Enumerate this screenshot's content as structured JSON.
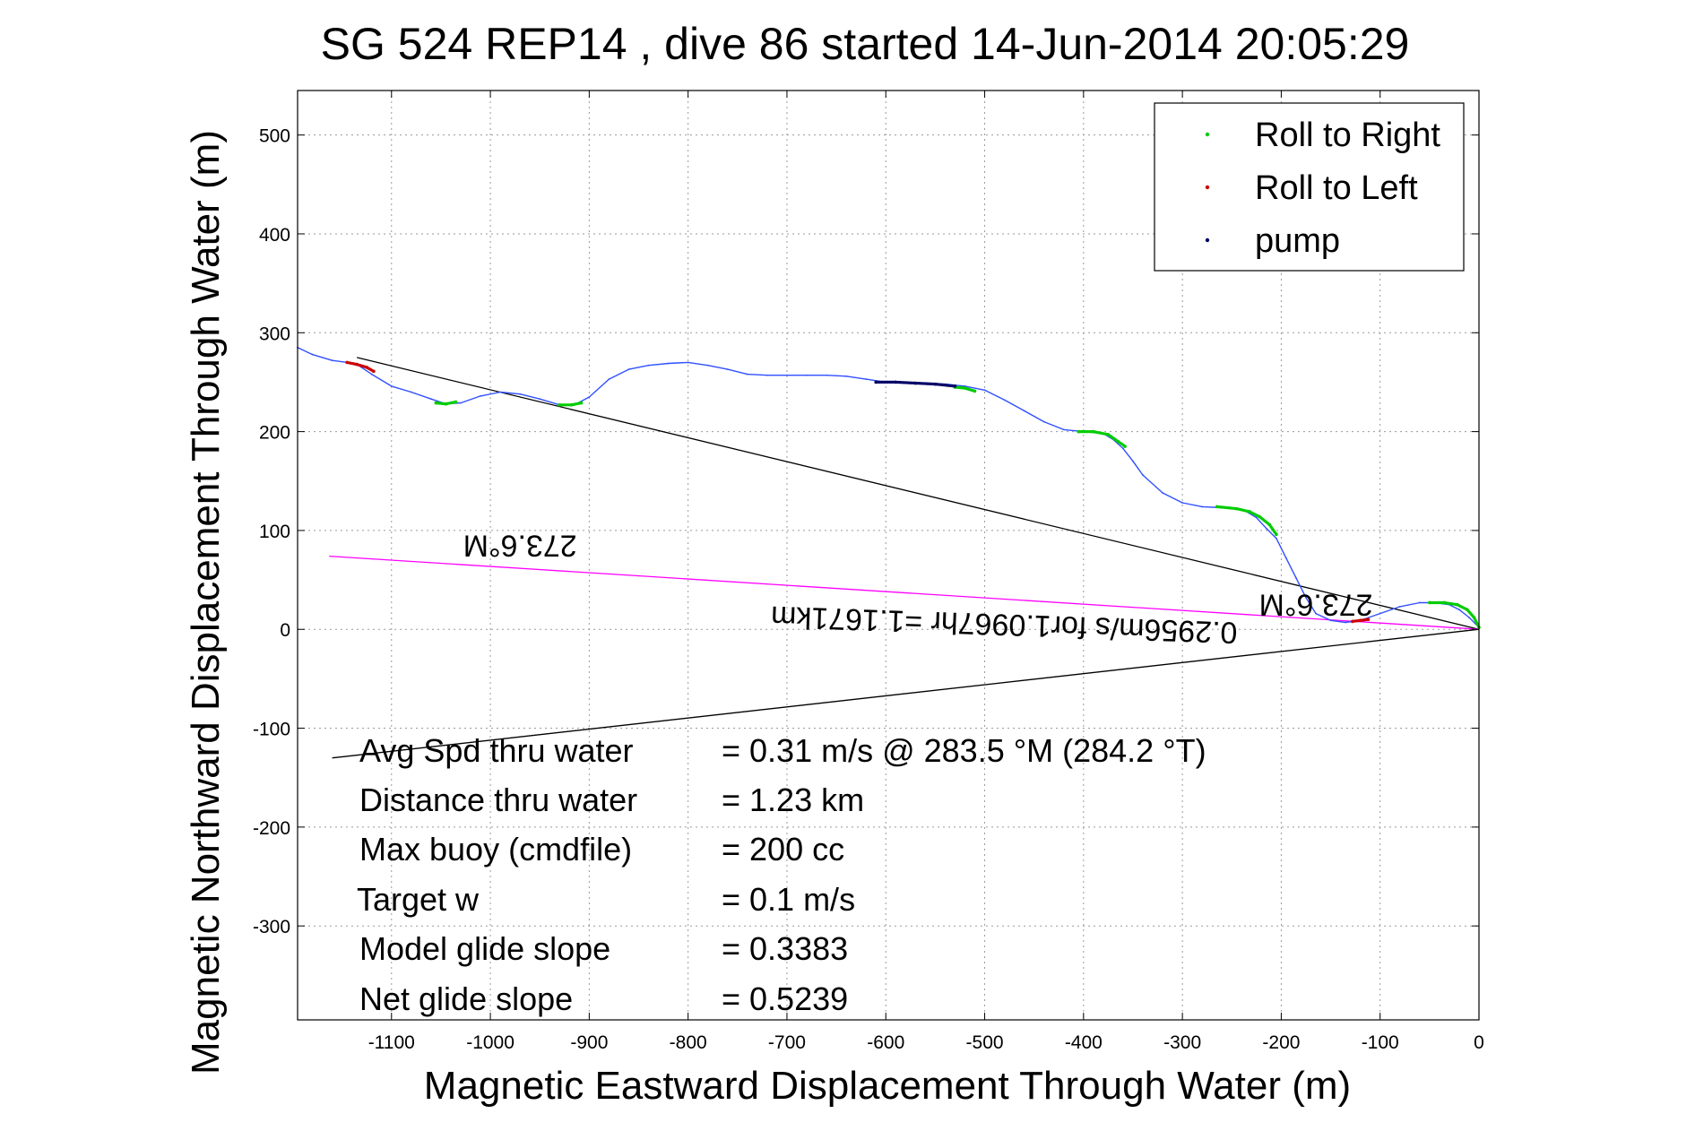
{
  "chart_data": {
    "type": "line",
    "title": "SG 524   REP14  , dive 86 started 14-Jun-2014 20:05:29",
    "xlabel": "Magnetic Eastward Displacement Through Water (m)",
    "ylabel": "Magnetic Northward Displacement Through Water (m)",
    "xlim": [
      -1195,
      0
    ],
    "ylim": [
      -395,
      545
    ],
    "xticks": [
      -1100,
      -1000,
      -900,
      -800,
      -700,
      -600,
      -500,
      -400,
      -300,
      -200,
      -100,
      0
    ],
    "yticks": [
      -300,
      -200,
      -100,
      0,
      100,
      200,
      300,
      400,
      500
    ],
    "grid": true,
    "legend_position": "top-right",
    "legend": [
      {
        "label": "Roll to Right",
        "color": "#00cc00"
      },
      {
        "label": "Roll to Left",
        "color": "#cc0000"
      },
      {
        "label": "pump",
        "color": "#000066"
      }
    ],
    "series": [
      {
        "role": "track",
        "color": "#3050ff",
        "x": [
          -1195,
          -1180,
          -1160,
          -1145,
          -1135,
          -1120,
          -1100,
          -1080,
          -1060,
          -1045,
          -1030,
          -1010,
          -990,
          -970,
          -950,
          -930,
          -915,
          -900,
          -880,
          -860,
          -840,
          -820,
          -800,
          -780,
          -760,
          -740,
          -720,
          -700,
          -680,
          -660,
          -640,
          -620,
          -600,
          -580,
          -560,
          -540,
          -520,
          -500,
          -480,
          -460,
          -440,
          -420,
          -400,
          -380,
          -370,
          -360,
          -350,
          -340,
          -320,
          -300,
          -280,
          -260,
          -245,
          -235,
          -225,
          -215,
          -205,
          -195,
          -185,
          -175,
          -165,
          -150,
          -135,
          -120,
          -100,
          -80,
          -60,
          -45,
          -30,
          -20,
          -10,
          0
        ],
        "y": [
          285,
          278,
          272,
          270,
          268,
          258,
          246,
          240,
          233,
          228,
          229,
          236,
          240,
          238,
          233,
          227,
          227,
          235,
          253,
          263,
          267,
          269,
          270,
          267,
          263,
          258,
          257,
          257,
          257,
          257,
          256,
          253,
          250,
          250,
          249,
          248,
          246,
          242,
          232,
          221,
          210,
          202,
          200,
          198,
          192,
          183,
          170,
          156,
          138,
          128,
          124,
          123,
          122,
          119,
          113,
          102,
          92,
          72,
          52,
          32,
          16,
          9,
          7,
          9,
          16,
          23,
          27,
          27,
          25,
          20,
          12,
          2
        ]
      },
      {
        "role": "roll-to-right",
        "color": "#00cc00",
        "segments": [
          {
            "x": [
              -1055,
              -1045,
              -1035
            ],
            "y": [
              229,
              228,
              230
            ]
          },
          {
            "x": [
              -930,
              -918,
              -908
            ],
            "y": [
              227,
              227,
              229
            ]
          },
          {
            "x": [
              -530,
              -520,
              -510
            ],
            "y": [
              245,
              244,
              241
            ]
          },
          {
            "x": [
              -405,
              -390,
              -375,
              -365,
              -358
            ],
            "y": [
              200,
              200,
              197,
              190,
              185
            ]
          },
          {
            "x": [
              -265,
              -245,
              -232,
              -222,
              -212,
              -205
            ],
            "y": [
              124,
              122,
              119,
              114,
              106,
              96
            ]
          },
          {
            "x": [
              -50,
              -35,
              -22,
              -12,
              -5,
              0
            ],
            "y": [
              27,
              27,
              25,
              20,
              12,
              2
            ]
          }
        ]
      },
      {
        "role": "roll-to-left",
        "color": "#cc0000",
        "segments": [
          {
            "x": [
              -1145,
              -1135,
              -1125,
              -1118
            ],
            "y": [
              270,
              268,
              265,
              261
            ]
          },
          {
            "x": [
              -128,
              -120,
              -112
            ],
            "y": [
              8,
              9,
              10
            ]
          }
        ]
      },
      {
        "role": "pump",
        "color": "#000066",
        "segments": [
          {
            "x": [
              -610,
              -590,
              -570,
              -550,
              -530
            ],
            "y": [
              250,
              250,
              249,
              248,
              246
            ]
          }
        ]
      },
      {
        "role": "reference-line-upper",
        "color": "#000000",
        "x": [
          -1135,
          0
        ],
        "y": [
          275,
          0
        ]
      },
      {
        "role": "reference-line-lower",
        "color": "#000000",
        "x": [
          -1160,
          0
        ],
        "y": [
          -130,
          0
        ]
      },
      {
        "role": "current-vector",
        "color": "#ff00ff",
        "x": [
          -1163,
          0
        ],
        "y": [
          74,
          0
        ]
      }
    ],
    "annotations": [
      {
        "text": "273.6°M",
        "x": -970,
        "y": 95,
        "rotation_deg": 180
      },
      {
        "text": "273.6°M",
        "x": -165,
        "y": 35,
        "rotation_deg": 180
      },
      {
        "text": "0.2956m/s for1.0967hr =1.1671km",
        "x": -480,
        "y": 15,
        "rotation_deg": 182
      }
    ],
    "stats": [
      {
        "label": "Avg Spd thru water",
        "value": "=  0.31 m/s @ 283.5 °M (284.2 °T)"
      },
      {
        "label": "Distance thru water",
        "value": "=  1.23 km"
      },
      {
        "label": "Max buoy (cmdfile)",
        "value": "= 200 cc"
      },
      {
        "label": "Target w",
        "value": "= 0.1 m/s"
      },
      {
        "label": "Model glide slope",
        "value": "= 0.3383"
      },
      {
        "label": "Net glide slope",
        "value": "= 0.5239"
      }
    ]
  }
}
